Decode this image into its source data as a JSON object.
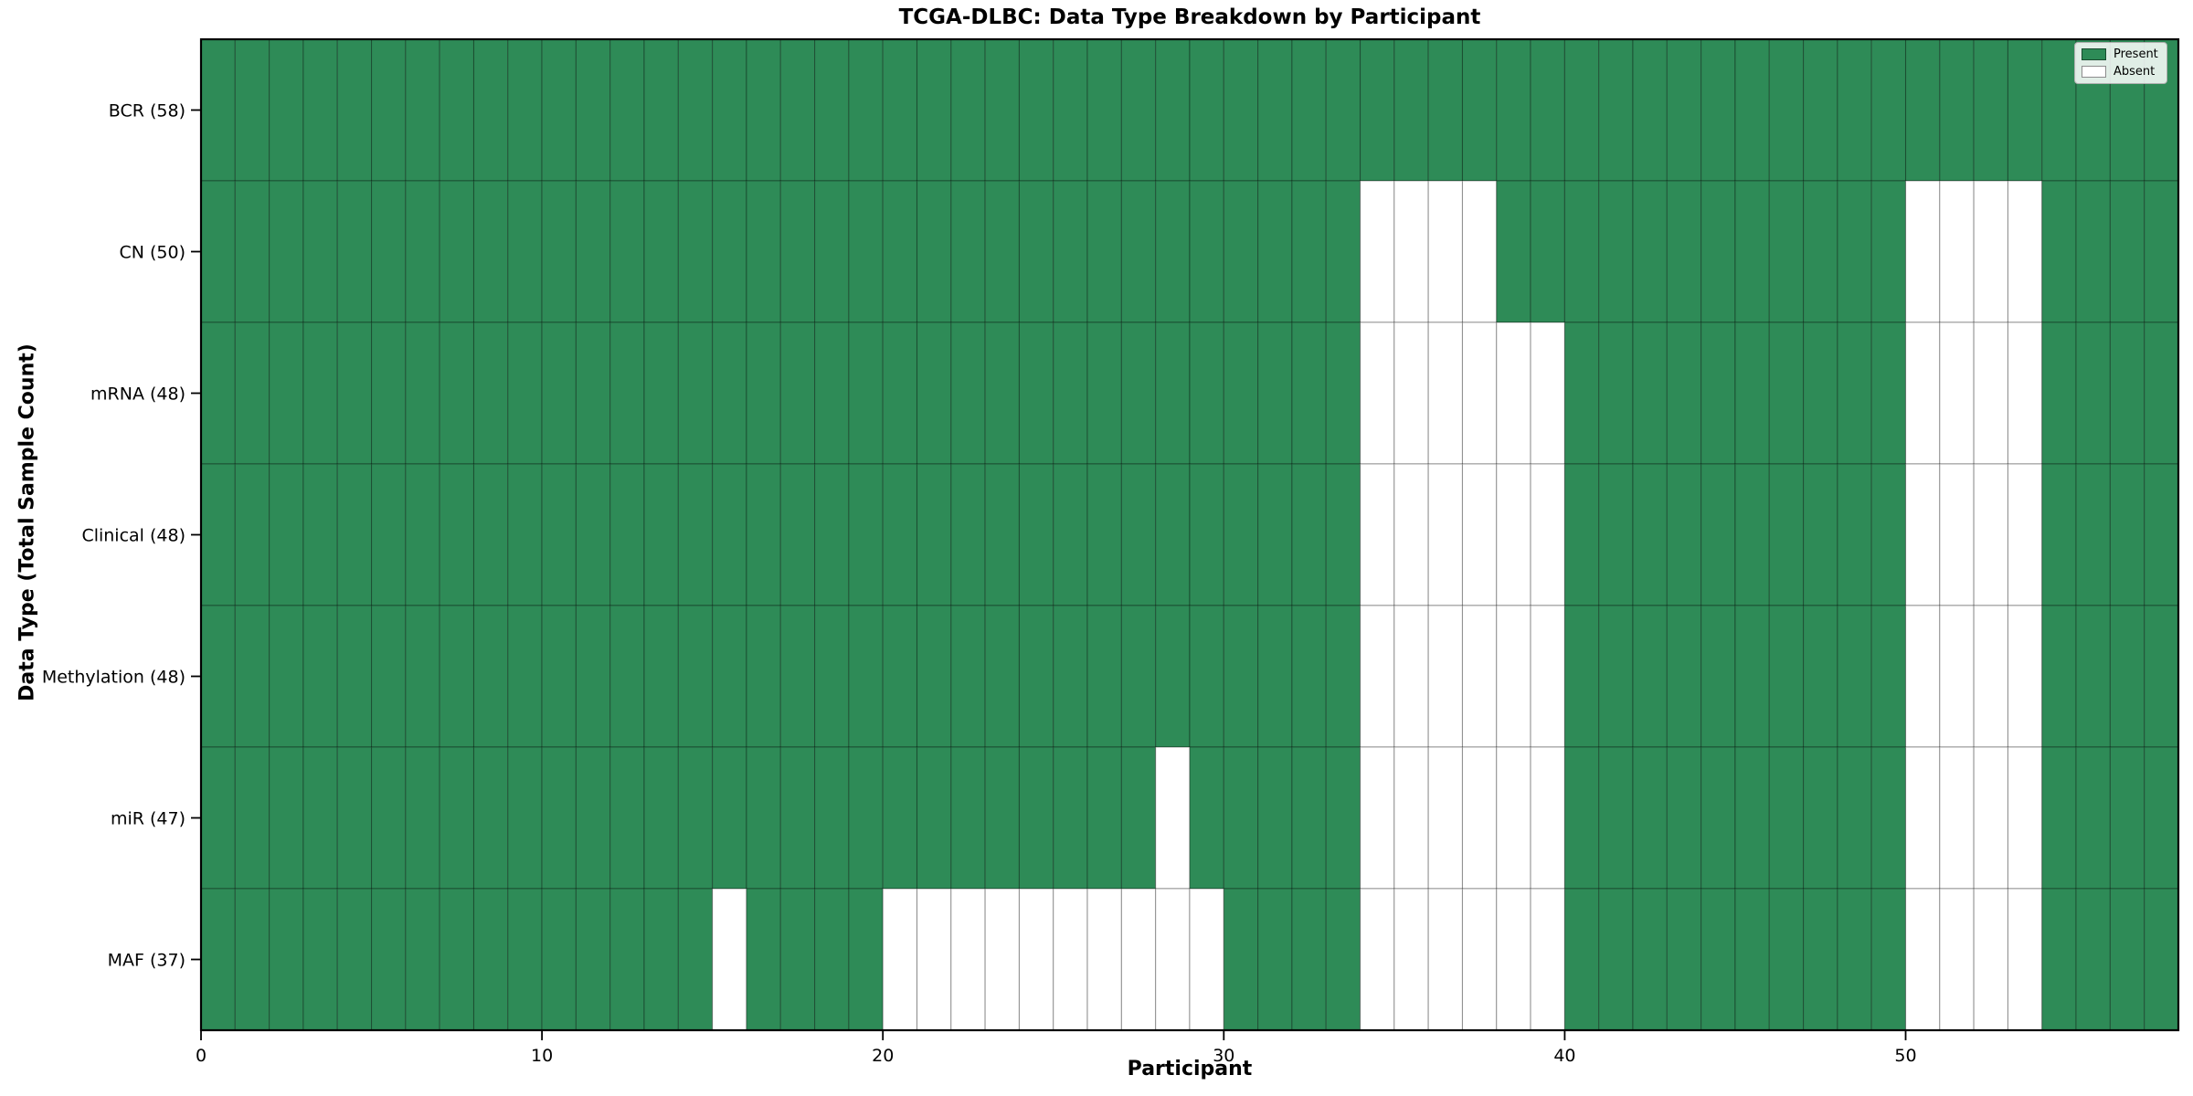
{
  "chart_data": {
    "type": "heatmap",
    "title": "TCGA-DLBC: Data Type Breakdown by Participant",
    "xlabel": "Participant",
    "ylabel": "Data Type (Total Sample Count)",
    "n_participants": 58,
    "x_range": [
      0,
      58
    ],
    "x_ticks": [
      0,
      10,
      20,
      30,
      40,
      50
    ],
    "grid": true,
    "legend_position": "upper-right",
    "rows": [
      {
        "label": "BCR (58)",
        "absent_participants": []
      },
      {
        "label": "CN (50)",
        "absent_participants": [
          34,
          35,
          36,
          37,
          50,
          51,
          52,
          53
        ]
      },
      {
        "label": "mRNA (48)",
        "absent_participants": [
          34,
          35,
          36,
          37,
          38,
          39,
          50,
          51,
          52,
          53
        ]
      },
      {
        "label": "Clinical (48)",
        "absent_participants": [
          34,
          35,
          36,
          37,
          38,
          39,
          50,
          51,
          52,
          53
        ]
      },
      {
        "label": "Methylation (48)",
        "absent_participants": [
          34,
          35,
          36,
          37,
          38,
          39,
          50,
          51,
          52,
          53
        ]
      },
      {
        "label": "miR (47)",
        "absent_participants": [
          28,
          34,
          35,
          36,
          37,
          38,
          39,
          50,
          51,
          52,
          53
        ]
      },
      {
        "label": "MAF (37)",
        "absent_participants": [
          15,
          20,
          21,
          22,
          23,
          24,
          25,
          26,
          27,
          28,
          29,
          34,
          35,
          36,
          37,
          38,
          39,
          50,
          51,
          52,
          53
        ]
      }
    ],
    "legend": [
      {
        "label": "Present",
        "color": "#2e8b57"
      },
      {
        "label": "Absent",
        "color": "#ffffff"
      }
    ],
    "colors": {
      "present": "#2e8b57",
      "absent": "#ffffff",
      "cell_edge": "rgba(0,0,0,0.32)",
      "spine": "#000000",
      "tick": "#000000"
    }
  }
}
